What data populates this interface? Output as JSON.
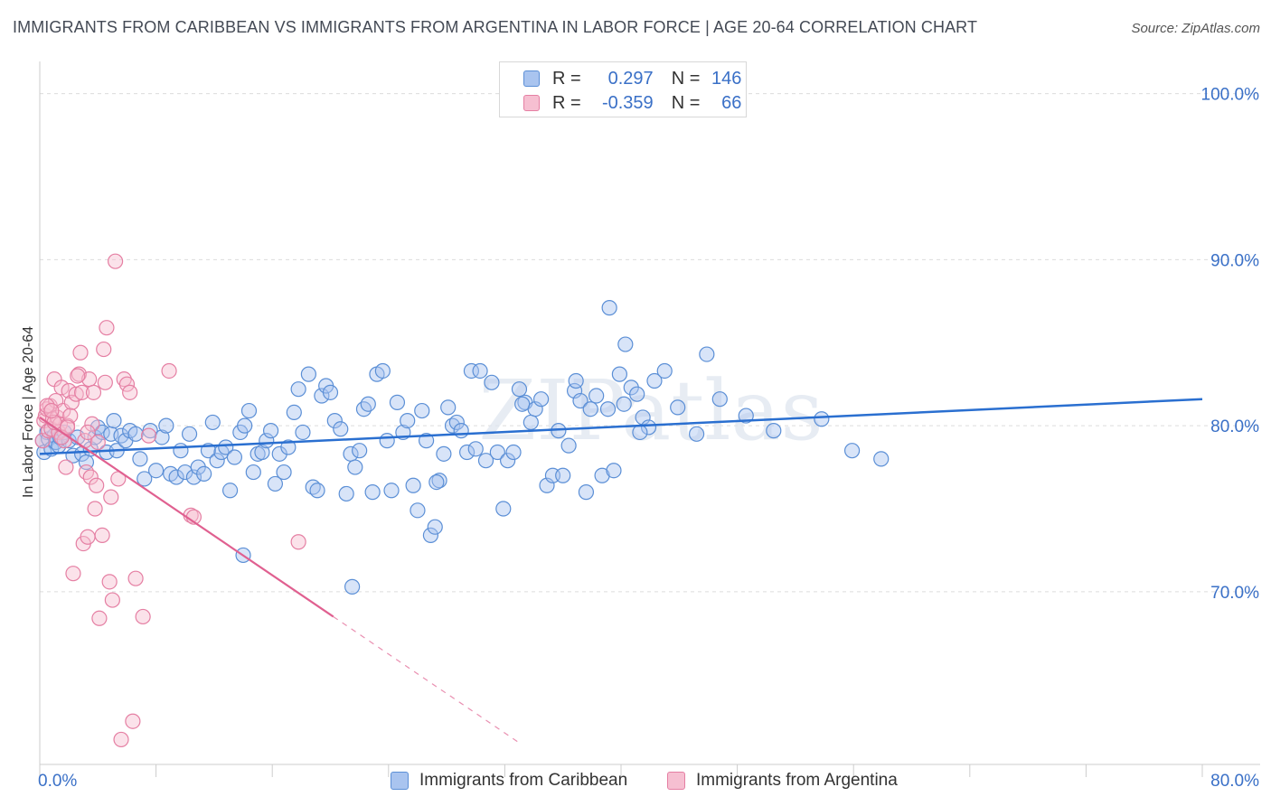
{
  "title": "IMMIGRANTS FROM CARIBBEAN VS IMMIGRANTS FROM ARGENTINA IN LABOR FORCE | AGE 20-64 CORRELATION CHART",
  "source": "Source: ZipAtlas.com",
  "watermark": "ZIPatlas",
  "legend": {
    "rows": [
      {
        "r_label": "R =",
        "r_value": "0.297",
        "n_label": "N =",
        "n_value": "146"
      },
      {
        "r_label": "R =",
        "r_value": "-0.359",
        "n_label": "N =",
        "n_value": "66"
      }
    ]
  },
  "colors": {
    "blue_fill": "#a9c4ef",
    "blue_stroke": "#5b8fd6",
    "blue_line": "#2a6fd0",
    "pink_fill": "#f6bfd1",
    "pink_stroke": "#e57fa3",
    "pink_line": "#e06090",
    "tick_label": "#3a70c7"
  },
  "chart_data": {
    "type": "scatter",
    "title": "IMMIGRANTS FROM CARIBBEAN VS IMMIGRANTS FROM ARGENTINA IN LABOR FORCE | AGE 20-64 CORRELATION CHART",
    "xlabel": "",
    "ylabel": "In Labor Force | Age 20-64",
    "xlim": [
      0,
      80
    ],
    "ylim": [
      59.6,
      101.5
    ],
    "x_tick_labels": [
      "0.0%",
      "80.0%"
    ],
    "y_ticks": [
      70,
      80,
      90,
      100
    ],
    "y_tick_labels": [
      "70.0%",
      "80.0%",
      "90.0%",
      "100.0%"
    ],
    "grid": true,
    "legend_position": "top-center",
    "series": [
      {
        "name": "Immigrants from Caribbean",
        "trend": {
          "x": [
            0,
            80
          ],
          "y": [
            78.3,
            81.6
          ]
        },
        "points": [
          [
            0.2,
            79.1
          ],
          [
            0.3,
            78.4
          ],
          [
            0.5,
            79.6
          ],
          [
            0.6,
            79.2
          ],
          [
            0.8,
            78.6
          ],
          [
            1.0,
            79.4
          ],
          [
            1.1,
            79.0
          ],
          [
            1.3,
            78.8
          ],
          [
            1.4,
            79.3
          ],
          [
            1.7,
            79.6
          ],
          [
            2.0,
            79.1
          ],
          [
            2.3,
            78.2
          ],
          [
            2.6,
            79.3
          ],
          [
            2.9,
            78.3
          ],
          [
            3.2,
            77.8
          ],
          [
            3.5,
            78.6
          ],
          [
            3.8,
            79.3
          ],
          [
            4.0,
            79.9
          ],
          [
            4.3,
            79.6
          ],
          [
            4.6,
            78.4
          ],
          [
            4.9,
            79.5
          ],
          [
            5.1,
            80.3
          ],
          [
            5.3,
            78.5
          ],
          [
            5.6,
            79.4
          ],
          [
            5.9,
            79.1
          ],
          [
            6.2,
            79.7
          ],
          [
            6.6,
            79.5
          ],
          [
            6.9,
            78.0
          ],
          [
            7.2,
            76.8
          ],
          [
            7.6,
            79.7
          ],
          [
            8.0,
            77.3
          ],
          [
            8.4,
            79.3
          ],
          [
            8.7,
            80.0
          ],
          [
            9.0,
            77.1
          ],
          [
            9.4,
            76.9
          ],
          [
            9.7,
            78.5
          ],
          [
            10.0,
            77.2
          ],
          [
            10.3,
            79.5
          ],
          [
            10.6,
            76.9
          ],
          [
            10.9,
            77.5
          ],
          [
            11.3,
            77.1
          ],
          [
            11.6,
            78.5
          ],
          [
            11.9,
            80.2
          ],
          [
            12.2,
            77.9
          ],
          [
            12.5,
            78.4
          ],
          [
            12.8,
            78.7
          ],
          [
            13.1,
            76.1
          ],
          [
            13.4,
            78.1
          ],
          [
            13.8,
            79.6
          ],
          [
            14.1,
            80.0
          ],
          [
            14.4,
            80.9
          ],
          [
            14.7,
            77.2
          ],
          [
            15.0,
            78.3
          ],
          [
            15.3,
            78.4
          ],
          [
            15.6,
            79.1
          ],
          [
            15.9,
            79.7
          ],
          [
            16.2,
            76.5
          ],
          [
            16.5,
            78.3
          ],
          [
            16.8,
            77.2
          ],
          [
            17.1,
            78.7
          ],
          [
            17.5,
            80.8
          ],
          [
            17.8,
            82.2
          ],
          [
            18.1,
            79.6
          ],
          [
            18.5,
            83.1
          ],
          [
            18.8,
            76.3
          ],
          [
            19.1,
            76.1
          ],
          [
            19.4,
            81.8
          ],
          [
            19.7,
            82.4
          ],
          [
            20.0,
            82.0
          ],
          [
            20.3,
            80.3
          ],
          [
            20.7,
            79.8
          ],
          [
            21.1,
            75.9
          ],
          [
            21.4,
            78.3
          ],
          [
            21.7,
            77.5
          ],
          [
            22.0,
            78.5
          ],
          [
            22.3,
            81.0
          ],
          [
            22.6,
            81.3
          ],
          [
            22.9,
            76.0
          ],
          [
            23.2,
            83.1
          ],
          [
            23.6,
            83.3
          ],
          [
            23.9,
            79.1
          ],
          [
            24.2,
            76.1
          ],
          [
            24.6,
            81.4
          ],
          [
            25.0,
            79.6
          ],
          [
            25.3,
            80.3
          ],
          [
            25.7,
            76.4
          ],
          [
            26.0,
            74.9
          ],
          [
            26.3,
            80.9
          ],
          [
            26.6,
            79.1
          ],
          [
            26.9,
            73.4
          ],
          [
            27.2,
            73.9
          ],
          [
            27.5,
            76.7
          ],
          [
            27.8,
            78.3
          ],
          [
            28.1,
            81.1
          ],
          [
            28.4,
            80.0
          ],
          [
            28.7,
            80.2
          ],
          [
            29.0,
            79.7
          ],
          [
            29.4,
            78.4
          ],
          [
            29.7,
            83.3
          ],
          [
            30.0,
            78.6
          ],
          [
            30.3,
            83.3
          ],
          [
            30.7,
            77.9
          ],
          [
            31.1,
            82.6
          ],
          [
            31.5,
            78.4
          ],
          [
            31.9,
            75.0
          ],
          [
            32.2,
            77.9
          ],
          [
            32.6,
            78.4
          ],
          [
            33.0,
            82.2
          ],
          [
            33.4,
            81.4
          ],
          [
            33.8,
            80.2
          ],
          [
            34.1,
            81.0
          ],
          [
            34.5,
            81.6
          ],
          [
            34.9,
            76.4
          ],
          [
            35.3,
            77.0
          ],
          [
            35.7,
            79.7
          ],
          [
            36.0,
            77.0
          ],
          [
            36.4,
            78.8
          ],
          [
            36.8,
            82.1
          ],
          [
            37.2,
            81.5
          ],
          [
            37.6,
            76.0
          ],
          [
            37.9,
            81.0
          ],
          [
            38.3,
            81.8
          ],
          [
            38.7,
            77.0
          ],
          [
            39.1,
            81.0
          ],
          [
            39.5,
            77.3
          ],
          [
            39.9,
            83.1
          ],
          [
            40.3,
            84.9
          ],
          [
            40.7,
            82.3
          ],
          [
            41.1,
            81.9
          ],
          [
            41.5,
            80.5
          ],
          [
            41.9,
            79.9
          ],
          [
            42.3,
            82.7
          ],
          [
            43.0,
            83.3
          ],
          [
            43.9,
            81.1
          ],
          [
            45.2,
            79.5
          ],
          [
            45.9,
            84.3
          ],
          [
            46.8,
            81.6
          ],
          [
            48.6,
            80.6
          ],
          [
            50.5,
            79.7
          ],
          [
            53.8,
            80.4
          ],
          [
            55.9,
            78.5
          ],
          [
            57.9,
            78.0
          ],
          [
            40.2,
            81.3
          ],
          [
            41.3,
            79.6
          ],
          [
            21.5,
            70.3
          ],
          [
            14.0,
            72.2
          ],
          [
            39.2,
            87.1
          ],
          [
            27.3,
            76.6
          ],
          [
            33.2,
            81.3
          ],
          [
            36.9,
            82.7
          ]
        ]
      },
      {
        "name": "Immigrants from Argentina",
        "trend": {
          "x": [
            0,
            20.2
          ],
          "y": [
            80.5,
            68.5
          ]
        },
        "trend_dashed": {
          "x": [
            20.2,
            33.0
          ],
          "y": [
            68.5,
            60.9
          ]
        },
        "points": [
          [
            0.2,
            79.1
          ],
          [
            0.3,
            80.3
          ],
          [
            0.4,
            80.6
          ],
          [
            0.5,
            81.0
          ],
          [
            0.6,
            79.7
          ],
          [
            0.7,
            81.2
          ],
          [
            0.8,
            79.8
          ],
          [
            0.9,
            80.4
          ],
          [
            1.0,
            82.8
          ],
          [
            1.1,
            81.5
          ],
          [
            1.2,
            80.5
          ],
          [
            1.3,
            79.6
          ],
          [
            1.4,
            80.1
          ],
          [
            1.5,
            82.3
          ],
          [
            1.6,
            80.9
          ],
          [
            1.7,
            79.1
          ],
          [
            1.8,
            77.5
          ],
          [
            1.9,
            80.0
          ],
          [
            2.0,
            82.1
          ],
          [
            2.2,
            81.4
          ],
          [
            2.3,
            71.1
          ],
          [
            2.5,
            81.9
          ],
          [
            2.7,
            83.1
          ],
          [
            2.8,
            84.4
          ],
          [
            2.9,
            82.0
          ],
          [
            3.0,
            72.9
          ],
          [
            3.1,
            79.1
          ],
          [
            3.2,
            77.2
          ],
          [
            3.3,
            73.3
          ],
          [
            3.4,
            82.8
          ],
          [
            3.5,
            76.9
          ],
          [
            3.6,
            80.1
          ],
          [
            3.7,
            82.0
          ],
          [
            3.8,
            75.0
          ],
          [
            3.9,
            76.4
          ],
          [
            4.0,
            79.0
          ],
          [
            4.1,
            68.4
          ],
          [
            4.3,
            73.4
          ],
          [
            4.4,
            84.6
          ],
          [
            4.6,
            85.9
          ],
          [
            4.8,
            70.6
          ],
          [
            4.9,
            75.7
          ],
          [
            5.0,
            69.5
          ],
          [
            5.2,
            89.9
          ],
          [
            5.4,
            76.8
          ],
          [
            5.6,
            61.1
          ],
          [
            5.8,
            82.8
          ],
          [
            6.0,
            82.5
          ],
          [
            6.2,
            82.0
          ],
          [
            6.4,
            62.2
          ],
          [
            6.6,
            70.8
          ],
          [
            7.1,
            68.5
          ],
          [
            7.5,
            79.4
          ],
          [
            8.9,
            83.3
          ],
          [
            10.4,
            74.6
          ],
          [
            10.6,
            74.5
          ],
          [
            17.8,
            73.0
          ],
          [
            0.5,
            81.2
          ],
          [
            1.0,
            80.2
          ],
          [
            1.5,
            79.3
          ],
          [
            2.1,
            80.6
          ],
          [
            2.6,
            83.0
          ],
          [
            3.3,
            79.6
          ],
          [
            0.8,
            80.9
          ],
          [
            4.5,
            82.6
          ],
          [
            1.9,
            79.9
          ]
        ]
      }
    ]
  }
}
